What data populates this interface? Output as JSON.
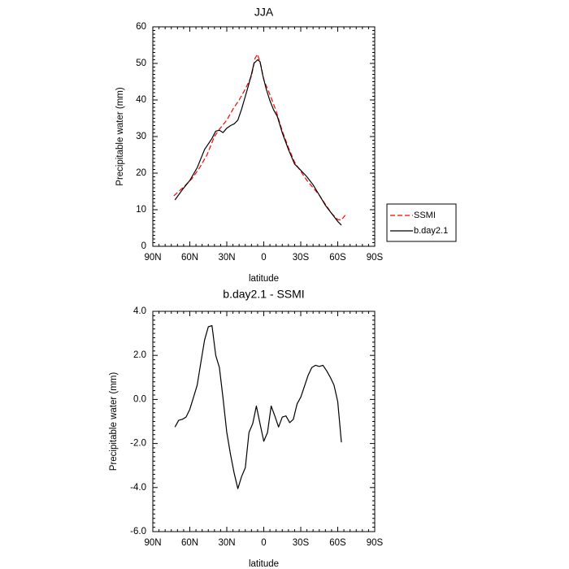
{
  "chart_data": [
    {
      "type": "line",
      "title": "JJA",
      "xlabel": "latitude",
      "ylabel": "Precipitable water (mm)",
      "xlim": [
        90,
        -90
      ],
      "ylim": [
        0,
        60
      ],
      "x_ticks": [
        90,
        60,
        30,
        0,
        -30,
        -60,
        -90
      ],
      "x_tick_labels": [
        "90N",
        "60N",
        "30N",
        "0",
        "30S",
        "60S",
        "90S"
      ],
      "y_ticks": [
        0,
        10,
        20,
        30,
        40,
        50,
        60
      ],
      "y_tick_labels": [
        "0",
        "10",
        "20",
        "30",
        "40",
        "50",
        "60"
      ],
      "legend": {
        "position": "right",
        "entries": [
          "SSMI",
          "b.day2.1"
        ]
      },
      "series": [
        {
          "name": "SSMI",
          "color": "#ff0000",
          "dash": "dashed",
          "x": [
            73,
            65,
            58,
            52,
            46,
            40,
            36,
            30,
            25,
            20,
            15,
            10,
            7,
            5,
            2,
            0,
            -5,
            -10,
            -15,
            -20,
            -25,
            -30,
            -35,
            -40,
            -45,
            -50,
            -55,
            -60,
            -63,
            -66
          ],
          "y": [
            13.8,
            16.2,
            18.6,
            21.5,
            25,
            30,
            32,
            34.5,
            37.5,
            40,
            43,
            46.5,
            51.5,
            52.5,
            49,
            45.5,
            41.5,
            37,
            31.5,
            27,
            23,
            20.5,
            18,
            16,
            14,
            11.5,
            9,
            7.3,
            7.2,
            8.5
          ]
        },
        {
          "name": "b.day2.1",
          "color": "#000000",
          "dash": "solid",
          "x": [
            72,
            66,
            60,
            54,
            48,
            42,
            39,
            36,
            33,
            30,
            27,
            24,
            21,
            18,
            15,
            12,
            10,
            8,
            5,
            3,
            1,
            -2,
            -5,
            -8,
            -11,
            -15,
            -20,
            -25,
            -30,
            -35,
            -40,
            -45,
            -50,
            -55,
            -60,
            -63
          ],
          "y": [
            12.7,
            15.5,
            18,
            21.5,
            26.5,
            29.5,
            31.5,
            31.7,
            31.1,
            32.3,
            33,
            33.5,
            34.5,
            37.5,
            41,
            44.5,
            47,
            50,
            51,
            50.5,
            47,
            43,
            39.8,
            37.3,
            35.5,
            31,
            26.5,
            22.5,
            20.8,
            19,
            16.8,
            14,
            11.2,
            9,
            6.8,
            5.8
          ]
        }
      ]
    },
    {
      "type": "line",
      "title": "b.day2.1 - SSMI",
      "xlabel": "latitude",
      "ylabel": "Precipitable water (mm)",
      "xlim": [
        90,
        -90
      ],
      "ylim": [
        -6,
        4
      ],
      "x_ticks": [
        90,
        60,
        30,
        0,
        -30,
        -60,
        -90
      ],
      "x_tick_labels": [
        "90N",
        "60N",
        "30N",
        "0",
        "30S",
        "60S",
        "90S"
      ],
      "y_ticks": [
        -6,
        -4,
        -2,
        0,
        2,
        4
      ],
      "y_tick_labels": [
        "-6.0",
        "-4.0",
        "-2.0",
        "0.0",
        "2.0",
        "4.0"
      ],
      "series": [
        {
          "color": "#000000",
          "dash": "solid",
          "x": [
            72,
            69,
            66,
            63,
            60,
            57,
            54,
            51,
            48,
            45,
            42,
            39,
            36,
            33,
            30,
            27,
            24,
            21,
            18,
            15,
            12,
            9,
            6,
            3,
            0,
            -3,
            -6,
            -9,
            -12,
            -15,
            -18,
            -21,
            -24,
            -27,
            -30,
            -33,
            -36,
            -39,
            -42,
            -45,
            -48,
            -51,
            -54,
            -57,
            -60,
            -63
          ],
          "y": [
            -1.25,
            -0.95,
            -0.9,
            -0.8,
            -0.45,
            0.1,
            0.65,
            1.7,
            2.7,
            3.3,
            3.35,
            2.0,
            1.45,
            0.05,
            -1.5,
            -2.5,
            -3.35,
            -4.05,
            -3.5,
            -3.1,
            -1.5,
            -1.1,
            -0.3,
            -1.1,
            -1.9,
            -1.5,
            -0.3,
            -0.75,
            -1.25,
            -0.8,
            -0.75,
            -1.05,
            -0.9,
            -0.2,
            0.1,
            0.6,
            1.1,
            1.45,
            1.55,
            1.5,
            1.55,
            1.3,
            1.0,
            0.65,
            -0.1,
            -1.95
          ]
        }
      ]
    }
  ]
}
